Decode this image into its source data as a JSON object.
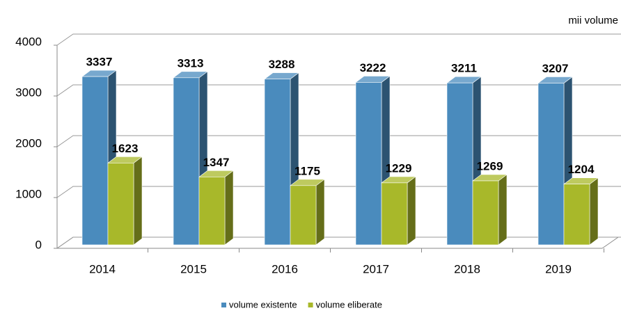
{
  "chart_data": {
    "type": "bar3d",
    "unit_label": "mii volume",
    "categories": [
      "2014",
      "2015",
      "2016",
      "2017",
      "2018",
      "2019"
    ],
    "series": [
      {
        "name": "volume existente",
        "color": "#4a8bbd",
        "values": [
          3337,
          3313,
          3288,
          3222,
          3211,
          3207
        ]
      },
      {
        "name": "volume eliberate",
        "color": "#a8b82a",
        "values": [
          1623,
          1347,
          1175,
          1229,
          1269,
          1204
        ]
      }
    ],
    "ylim": [
      0,
      4000
    ],
    "yticks": [
      0,
      1000,
      2000,
      3000,
      4000
    ],
    "grid": true,
    "legend": "bottom"
  }
}
